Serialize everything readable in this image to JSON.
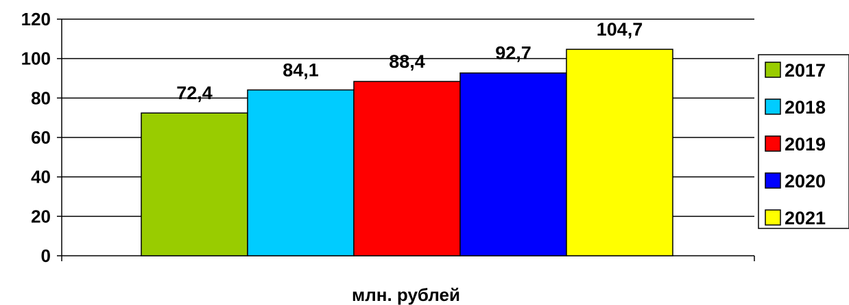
{
  "chart_data": {
    "type": "bar",
    "xlabel": "млн. рублей",
    "ylim": [
      0,
      120
    ],
    "y_ticks": [
      0,
      20,
      40,
      60,
      80,
      100,
      120
    ],
    "y_tick_labels": [
      "0",
      "20",
      "40",
      "60",
      "80",
      "100",
      "120"
    ],
    "grid": true,
    "legend_position": "right",
    "series": [
      {
        "name": "2017",
        "value": 72.4,
        "label": "72,4",
        "color": "#99CC00"
      },
      {
        "name": "2018",
        "value": 84.1,
        "label": "84,1",
        "color": "#00CCFF"
      },
      {
        "name": "2019",
        "value": 88.4,
        "label": "88,4",
        "color": "#FF0000"
      },
      {
        "name": "2020",
        "value": 92.7,
        "label": "92,7",
        "color": "#0000FF"
      },
      {
        "name": "2021",
        "value": 104.7,
        "label": "104,7",
        "color": "#FFFF00"
      }
    ]
  }
}
